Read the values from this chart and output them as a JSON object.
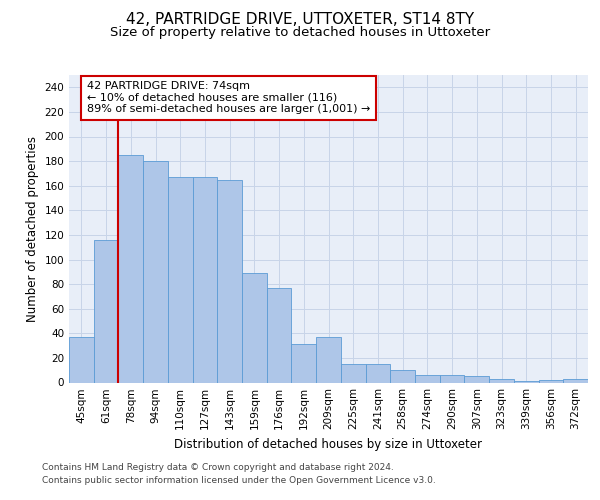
{
  "title1": "42, PARTRIDGE DRIVE, UTTOXETER, ST14 8TY",
  "title2": "Size of property relative to detached houses in Uttoxeter",
  "xlabel": "Distribution of detached houses by size in Uttoxeter",
  "ylabel": "Number of detached properties",
  "categories": [
    "45sqm",
    "61sqm",
    "78sqm",
    "94sqm",
    "110sqm",
    "127sqm",
    "143sqm",
    "159sqm",
    "176sqm",
    "192sqm",
    "209sqm",
    "225sqm",
    "241sqm",
    "258sqm",
    "274sqm",
    "290sqm",
    "307sqm",
    "323sqm",
    "339sqm",
    "356sqm",
    "372sqm"
  ],
  "bar_values": [
    37,
    116,
    185,
    180,
    167,
    167,
    165,
    89,
    77,
    31,
    37,
    15,
    15,
    10,
    6,
    6,
    5,
    3,
    1,
    2,
    3
  ],
  "bar_color": "#aec6e8",
  "bar_edge_color": "#5b9bd5",
  "vline_x": 1.5,
  "vline_color": "#cc0000",
  "annotation_text": "42 PARTRIDGE DRIVE: 74sqm\n← 10% of detached houses are smaller (116)\n89% of semi-detached houses are larger (1,001) →",
  "annotation_box_color": "white",
  "annotation_box_edge": "#cc0000",
  "ylim": [
    0,
    250
  ],
  "yticks": [
    0,
    20,
    40,
    60,
    80,
    100,
    120,
    140,
    160,
    180,
    200,
    220,
    240
  ],
  "grid_color": "#c8d4e8",
  "background_color": "#e8eef8",
  "footer_line1": "Contains HM Land Registry data © Crown copyright and database right 2024.",
  "footer_line2": "Contains public sector information licensed under the Open Government Licence v3.0.",
  "title1_fontsize": 11,
  "title2_fontsize": 9.5,
  "xlabel_fontsize": 8.5,
  "ylabel_fontsize": 8.5,
  "tick_fontsize": 7.5,
  "annotation_fontsize": 8,
  "footer_fontsize": 6.5
}
